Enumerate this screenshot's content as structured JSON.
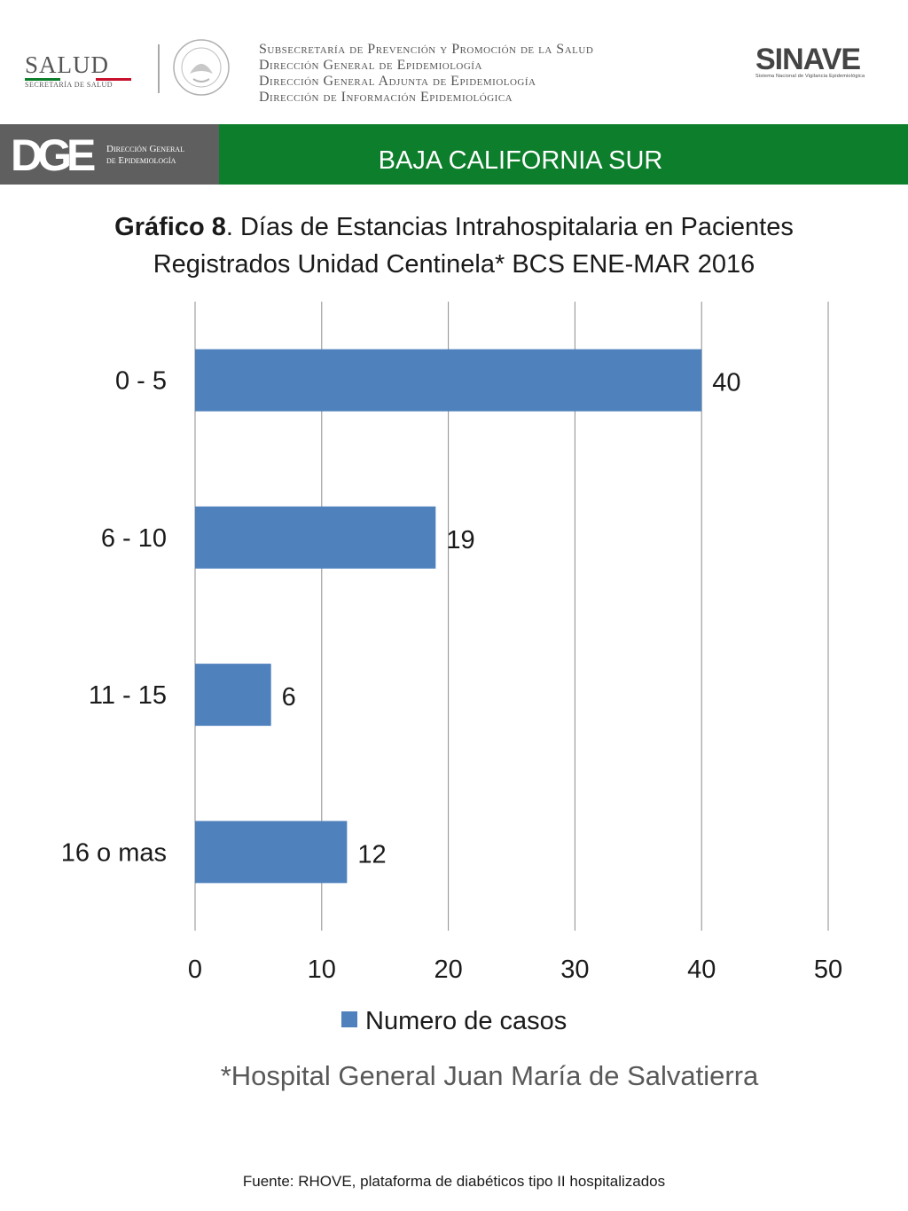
{
  "header": {
    "salud_word": "SALUD",
    "salud_sub": "SECRETARÍA DE SALUD",
    "subsecretaria_lines": [
      "Subsecretaría de Prevención y Promoción de la Salud",
      "Dirección General de Epidemiología",
      "Dirección General Adjunta de Epidemiología",
      "Dirección de Información Epidemiológica"
    ],
    "sinave_word": "SINAVE",
    "sinave_sub": "Sistema Nacional de Vigilancia Epidemiológica"
  },
  "band": {
    "dge_logo": "DGE",
    "dge_line1": "Dirección General",
    "dge_line2": "de Epidemiología",
    "state": "BAJA CALIFORNIA SUR"
  },
  "title": {
    "bold": "Gráfico 8",
    "rest_line1": ". Días de Estancias Intrahospitalaria en Pacientes",
    "line2": "Registrados Unidad Centinela* BCS  ENE-MAR 2016"
  },
  "chart_data": {
    "type": "bar",
    "orientation": "horizontal",
    "categories": [
      "0 - 5",
      "6 - 10",
      "11 - 15",
      "16 o mas"
    ],
    "series": [
      {
        "name": "Numero de casos",
        "values": [
          40,
          19,
          6,
          12
        ],
        "color": "#4f81bd"
      }
    ],
    "data_labels": [
      "40",
      "19",
      "6",
      "12"
    ],
    "xlim": [
      0,
      50
    ],
    "x_ticks": [
      0,
      10,
      20,
      30,
      40,
      50
    ],
    "grid": "vertical",
    "legend": "bottom"
  },
  "footnote": "*Hospital General Juan María de Salvatierra",
  "source": "Fuente: RHOVE, plataforma de diabéticos tipo II hospitalizados",
  "colors": {
    "green_band": "#0d7e2b",
    "grey_band": "#5f5f5f",
    "bar": "#4f81bd"
  }
}
